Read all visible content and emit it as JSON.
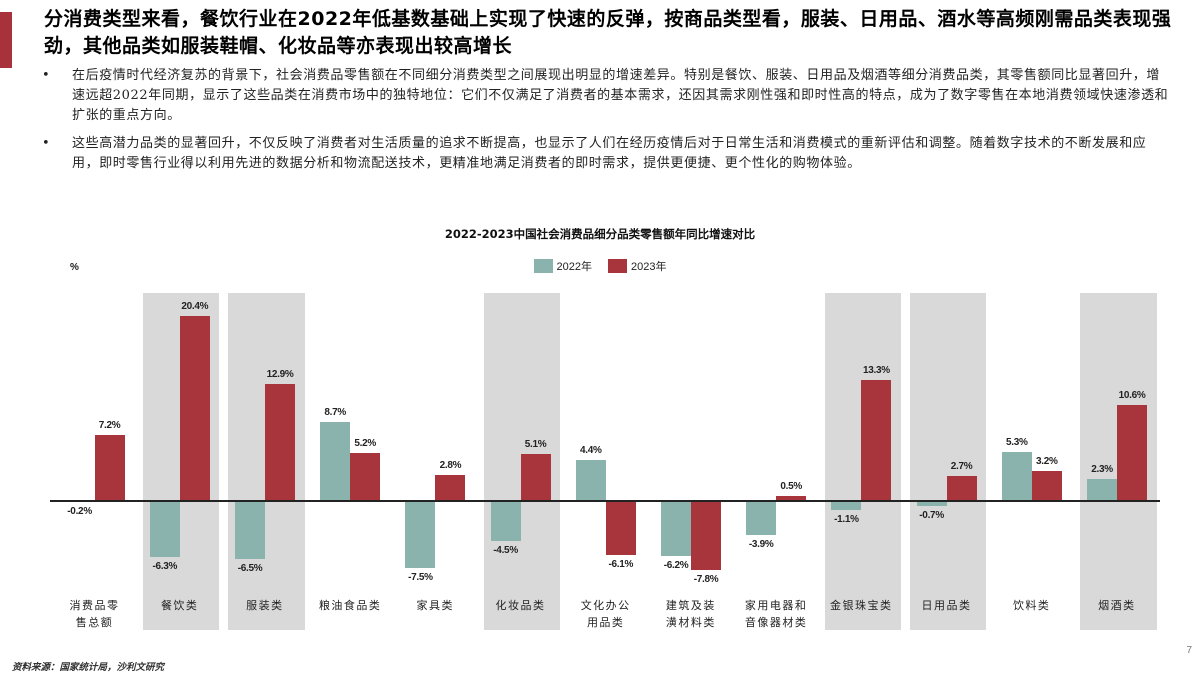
{
  "header": {
    "title": "分消费类型来看，餐饮行业在2022年低基数基础上实现了快速的反弹，按商品类型看，服装、日用品、酒水等高频刚需品类表现强劲，其他品类如服装鞋帽、化妆品等亦表现出较高增长",
    "accent_color": "#a8323b"
  },
  "bullets": [
    {
      "text": "在后疫情时代经济复苏的背景下，社会消费品零售额在不同细分消费类型之间展现出明显的增速差异。特别是餐饮、服装、日用品及烟酒等细分消费品类，其零售额同比显著回升，增速远超2022年同期，显示了这些品类在消费市场中的独特地位：它们不仅满足了消费者的基本需求，还因其需求刚性强和即时性高的特点，成为了数字零售在本地消费领域快速渗透和扩张的重点方向。"
    },
    {
      "text": "这些高潜力品类的显著回升，不仅反映了消费者对生活质量的追求不断提高，也显示了人们在经历疫情后对于日常生活和消费模式的重新评估和调整。随着数字技术的不断发展和应用，即时零售行业得以利用先进的数据分析和物流配送技术，更精准地满足消费者的即时需求，提供更便捷、更个性化的购物体验。"
    }
  ],
  "bullet_glyph": "•",
  "chart_data": {
    "type": "bar",
    "title": "2022-2023中国社会消费品细分品类零售额年同比增速对比",
    "xlabel": "",
    "ylabel": "%",
    "ylim": [
      -8,
      21
    ],
    "grid": false,
    "legend_position": "top-center",
    "categories": [
      "消费品零售总额",
      "餐饮类",
      "服装类",
      "粮油食品类",
      "家具类",
      "化妆品类",
      "文化办公用品类",
      "建筑及装潢材料类",
      "家用电器和音像器材类",
      "金银珠宝类",
      "日用品类",
      "饮料类",
      "烟酒类"
    ],
    "category_display": [
      "消费品零\n售总额",
      "餐饮类",
      "服装类",
      "粮油食品类",
      "家具类",
      "化妆品类",
      "文化办公\n用品类",
      "建筑及装\n潢材料类",
      "家用电器和\n音像器材类",
      "金银珠宝类",
      "日用品类",
      "饮料类",
      "烟酒类"
    ],
    "highlighted": [
      false,
      true,
      true,
      false,
      false,
      true,
      false,
      false,
      false,
      true,
      true,
      false,
      true
    ],
    "series": [
      {
        "name": "2022年",
        "color": "#8ab3ae",
        "values": [
          -0.2,
          -6.3,
          -6.5,
          8.7,
          -7.5,
          -4.5,
          4.4,
          -6.2,
          -3.9,
          -1.1,
          -0.7,
          5.3,
          2.3
        ]
      },
      {
        "name": "2023年",
        "color": "#a8353c",
        "values": [
          7.2,
          20.4,
          12.9,
          5.2,
          2.8,
          5.1,
          -6.1,
          -7.8,
          0.5,
          13.3,
          2.7,
          3.2,
          10.6
        ]
      }
    ],
    "highlight_color": "#d9d9d9",
    "value_suffix": "%"
  },
  "footer": {
    "source": "资料来源：国家统计局，沙利文研究",
    "page_number": "7"
  }
}
